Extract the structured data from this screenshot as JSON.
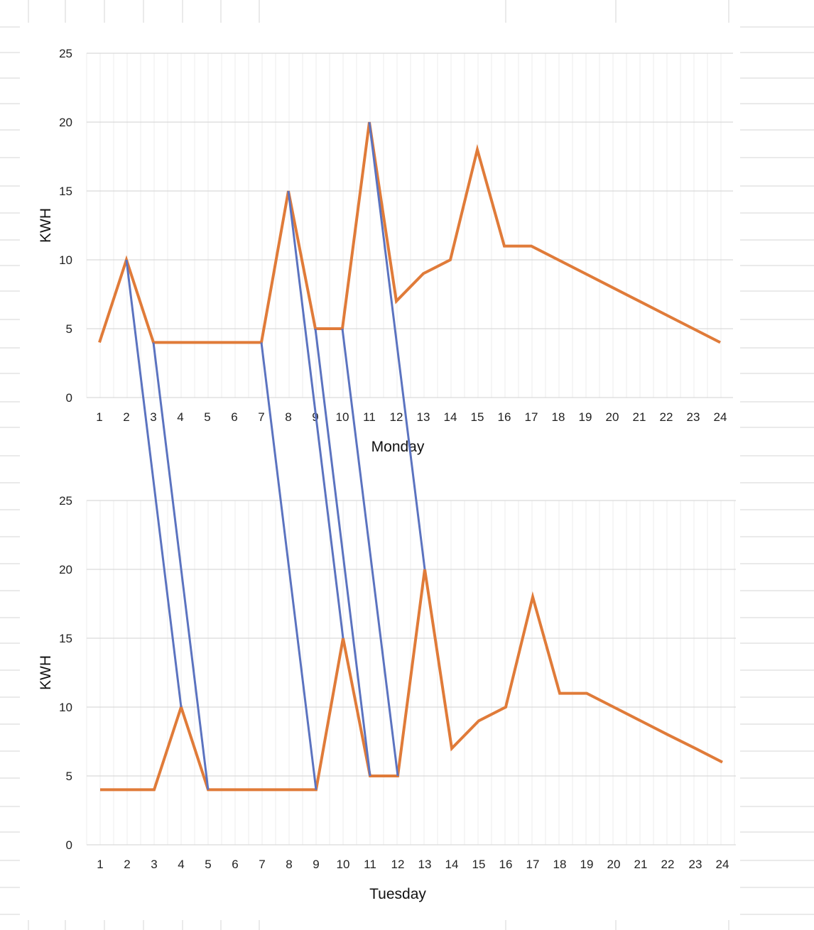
{
  "chart_data": [
    {
      "type": "line",
      "xlabel": "Monday",
      "ylabel": "KWH",
      "ylim": [
        0,
        25
      ],
      "yticks": [
        0,
        5,
        10,
        15,
        20,
        25
      ],
      "categories": [
        "1",
        "2",
        "3",
        "4",
        "5",
        "6",
        "7",
        "8",
        "9",
        "10",
        "11",
        "12",
        "13",
        "14",
        "15",
        "16",
        "17",
        "18",
        "19",
        "20",
        "21",
        "22",
        "23",
        "24"
      ],
      "series": [
        {
          "color": "#e07b39",
          "values": [
            4,
            10,
            4,
            4,
            4,
            4,
            4,
            15,
            5,
            5,
            20,
            7,
            9,
            10,
            18,
            11,
            11,
            10,
            9,
            8,
            7,
            6,
            5,
            4
          ]
        }
      ],
      "grid": true,
      "legend": "none"
    },
    {
      "type": "line",
      "xlabel": "Tuesday",
      "ylabel": "KWH",
      "ylim": [
        0,
        25
      ],
      "yticks": [
        0,
        5,
        10,
        15,
        20,
        25
      ],
      "categories": [
        "1",
        "2",
        "3",
        "4",
        "5",
        "6",
        "7",
        "8",
        "9",
        "10",
        "11",
        "12",
        "13",
        "14",
        "15",
        "16",
        "17",
        "18",
        "19",
        "20",
        "21",
        "22",
        "23",
        "24"
      ],
      "series": [
        {
          "color": "#e07b39",
          "values": [
            4,
            4,
            4,
            10,
            4,
            4,
            4,
            4,
            4,
            15,
            5,
            5,
            20,
            7,
            9,
            10,
            18,
            11,
            11,
            10,
            9,
            8,
            7,
            6
          ]
        }
      ],
      "grid": true,
      "legend": "none"
    }
  ],
  "connectors": {
    "color": "#5b73c0",
    "links": [
      {
        "from_hour": 2,
        "to_hour": 4
      },
      {
        "from_hour": 3,
        "to_hour": 5
      },
      {
        "from_hour": 7,
        "to_hour": 9
      },
      {
        "from_hour": 8,
        "to_hour": 10
      },
      {
        "from_hour": 9,
        "to_hour": 11
      },
      {
        "from_hour": 10,
        "to_hour": 12
      },
      {
        "from_hour": 11,
        "to_hour": 13
      }
    ]
  }
}
